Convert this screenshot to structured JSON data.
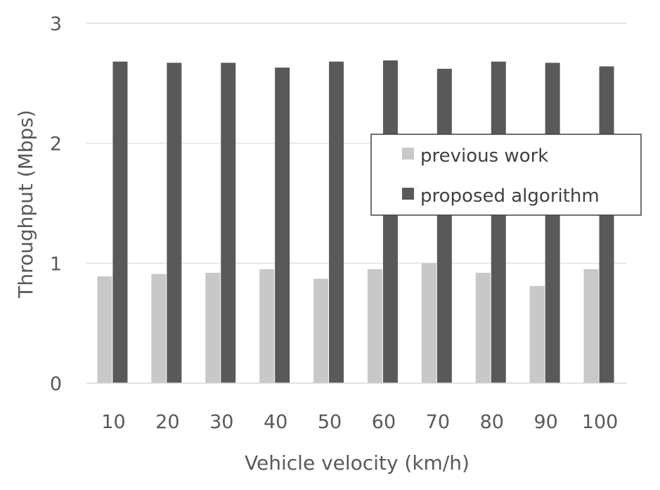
{
  "chart_data": {
    "type": "bar",
    "title": "",
    "xlabel": "Vehicle velocity (km/h)",
    "ylabel": "Throughput (Mbps)",
    "categories": [
      "10",
      "20",
      "30",
      "40",
      "50",
      "60",
      "70",
      "80",
      "90",
      "100"
    ],
    "ylim": [
      0,
      3
    ],
    "yticks": [
      "0",
      "1",
      "2",
      "3"
    ],
    "grid": true,
    "legend_position": "right",
    "series": [
      {
        "name": "previous work",
        "color": "#c8c8c8",
        "values": [
          0.89,
          0.91,
          0.92,
          0.95,
          0.87,
          0.95,
          1.0,
          0.92,
          0.81,
          0.95
        ]
      },
      {
        "name": "proposed algorithm",
        "color": "#595959",
        "values": [
          2.68,
          2.67,
          2.67,
          2.63,
          2.68,
          2.69,
          2.62,
          2.68,
          2.67,
          2.64
        ]
      }
    ]
  }
}
